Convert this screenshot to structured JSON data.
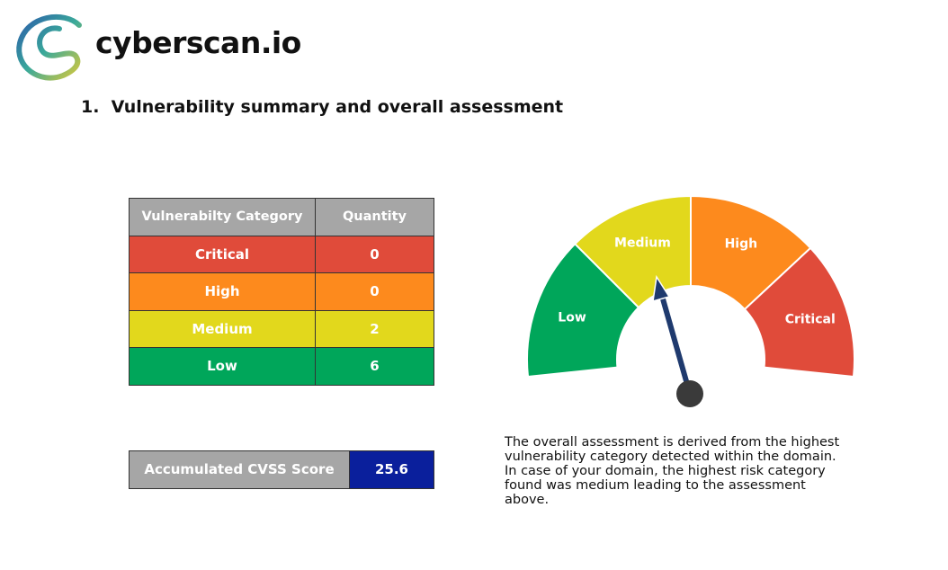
{
  "header": {
    "brand": "cyberscan.io"
  },
  "section": {
    "title": "1.  Vulnerability summary and overall assessment"
  },
  "table": {
    "header": [
      "Vulnerabilty Category",
      "Quantity"
    ],
    "rows": [
      [
        "Critical",
        0
      ],
      [
        "High",
        0
      ],
      [
        "Medium",
        2
      ],
      [
        "Low",
        6
      ]
    ]
  },
  "score": {
    "label": "Accumulated CVSS Score",
    "value": 25.6
  },
  "gauge": {
    "segments": [
      "Low",
      "Medium",
      "High",
      "Critical"
    ]
  },
  "assessment": {
    "lines": [
      "The overall assessment is derived from the highest",
      "vulnerability category detected within the domain.",
      "In case of your domain, the highest risk category",
      "found was medium leading to the assessment",
      "above."
    ]
  }
}
